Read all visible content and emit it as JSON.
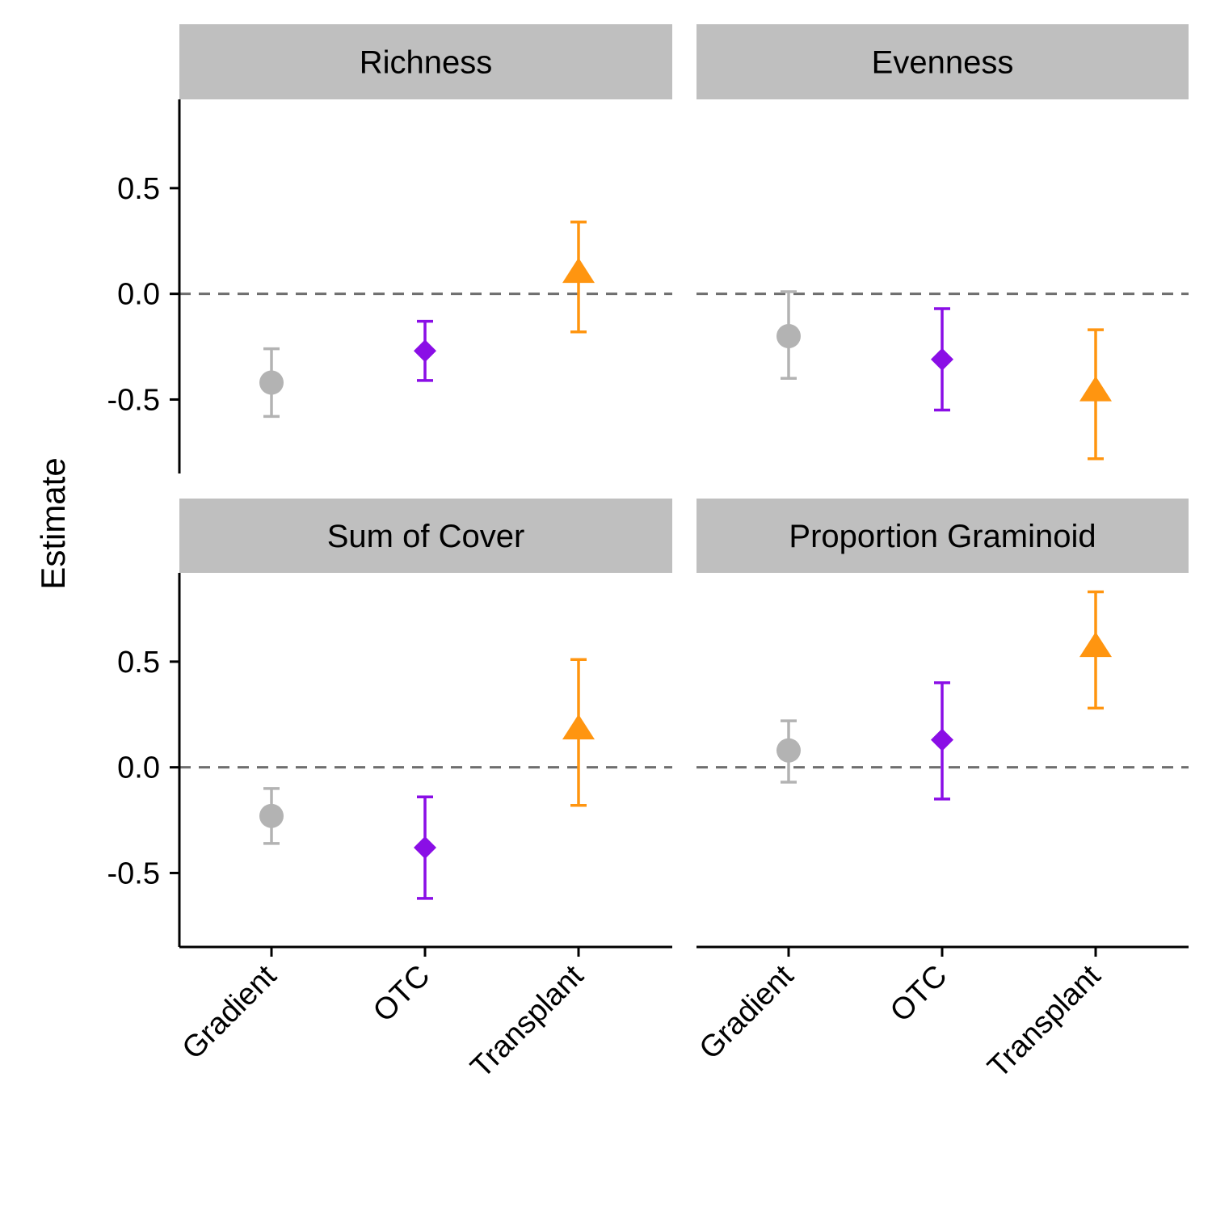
{
  "chart_data": {
    "type": "scatter",
    "ylabel": "Estimate",
    "categories": [
      "Gradient",
      "OTC",
      "Transplant"
    ],
    "yticks": [
      -0.5,
      0.0,
      0.5
    ],
    "ytick_labels": [
      "-0.5",
      "0.0",
      "0.5"
    ],
    "ylim": [
      -0.85,
      0.92
    ],
    "reference_line": 0,
    "legend": "none",
    "grid": false,
    "marker_styles": [
      {
        "category": "Gradient",
        "shape": "circle",
        "color": "#b3b3b3"
      },
      {
        "category": "OTC",
        "shape": "diamond",
        "color": "#8a0ee6"
      },
      {
        "category": "Transplant",
        "shape": "triangle",
        "color": "#ff9510"
      }
    ],
    "panels": [
      {
        "title": "Richness",
        "estimates": [
          -0.42,
          -0.27,
          0.1
        ],
        "lower": [
          -0.58,
          -0.41,
          -0.18
        ],
        "upper": [
          -0.26,
          -0.13,
          0.34
        ]
      },
      {
        "title": "Evenness",
        "estimates": [
          -0.2,
          -0.31,
          -0.46
        ],
        "lower": [
          -0.4,
          -0.55,
          -0.78
        ],
        "upper": [
          0.01,
          -0.07,
          -0.17
        ]
      },
      {
        "title": "Sum of Cover",
        "estimates": [
          -0.23,
          -0.38,
          0.18
        ],
        "lower": [
          -0.36,
          -0.62,
          -0.18
        ],
        "upper": [
          -0.1,
          -0.14,
          0.51
        ]
      },
      {
        "title": "Proportion Graminoid",
        "estimates": [
          0.08,
          0.13,
          0.57
        ],
        "lower": [
          -0.07,
          -0.15,
          0.28
        ],
        "upper": [
          0.22,
          0.4,
          0.83
        ]
      }
    ]
  }
}
